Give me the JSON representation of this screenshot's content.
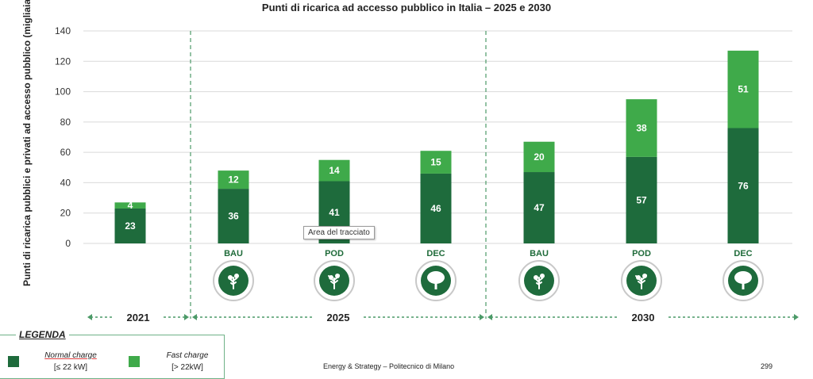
{
  "chart_data": {
    "type": "bar",
    "stacked": true,
    "title": "Punti di ricarica ad accesso pubblico in Italia – 2025 e 2030",
    "ylabel": "Punti di ricarica pubblici e privati ad accesso pubblico (migliaia)",
    "ylim": [
      0,
      140
    ],
    "yticks": [
      0,
      20,
      40,
      60,
      80,
      100,
      120,
      140
    ],
    "grid": true,
    "categories": [
      "",
      "BAU",
      "POD",
      "DEC",
      "BAU",
      "POD",
      "DEC"
    ],
    "groups": [
      {
        "label": "2021",
        "categories": 1
      },
      {
        "label": "2025",
        "categories": 3
      },
      {
        "label": "2030",
        "categories": 3
      }
    ],
    "series": [
      {
        "name": "Normal charge",
        "values": [
          23,
          36,
          41,
          46,
          47,
          57,
          76
        ],
        "color": "#1e6b3c"
      },
      {
        "name": "Fast charge",
        "values": [
          4,
          12,
          14,
          15,
          20,
          38,
          51
        ],
        "color": "#3faa4a"
      }
    ]
  },
  "legend": {
    "title": "LEGENDA",
    "items": [
      {
        "name": "Normal charge",
        "range": "[≤ 22 kW]",
        "color": "#1e6b3c"
      },
      {
        "name": "Fast charge",
        "range": "[> 22kW]",
        "color": "#3faa4a"
      }
    ]
  },
  "tooltip": "Area del tracciato",
  "footer": {
    "source": "Energy & Strategy – Politecnico di Milano",
    "page": "299"
  },
  "scenario_icons": [
    "tree-sapling-icon",
    "tree-small-icon",
    "tree-large-icon",
    "tree-sapling-icon",
    "tree-small-icon",
    "tree-large-icon"
  ],
  "colors": {
    "accent": "#1e6b3c",
    "divider": "#4c9a68"
  }
}
